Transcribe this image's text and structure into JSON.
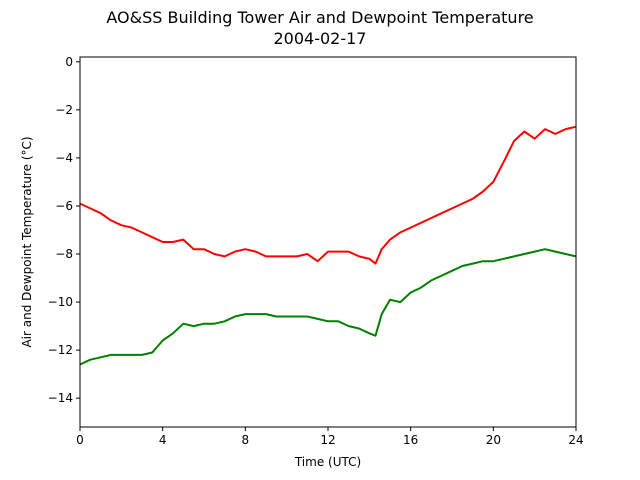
{
  "chart_data": {
    "type": "line",
    "title": "AO&SS Building Tower Air and Dewpoint Temperature",
    "subtitle": "2004-02-17",
    "xlabel": "Time (UTC)",
    "ylabel": "Air and Dewpoint Temperature (°C)",
    "xlim": [
      0,
      24
    ],
    "ylim": [
      -15.2,
      0.2
    ],
    "xticks": [
      0,
      4,
      8,
      12,
      16,
      20,
      24
    ],
    "yticks": [
      0,
      -2,
      -4,
      -6,
      -8,
      -10,
      -12,
      -14
    ],
    "xtick_labels": [
      "0",
      "4",
      "8",
      "12",
      "16",
      "20",
      "24"
    ],
    "ytick_labels": [
      "0",
      "−2",
      "−4",
      "−6",
      "−8",
      "−10",
      "−12",
      "−14"
    ],
    "grid": false,
    "series": [
      {
        "color": "#ff0000",
        "x": [
          0.0,
          0.5,
          1.0,
          1.5,
          2.0,
          2.5,
          3.0,
          3.5,
          4.0,
          4.5,
          5.0,
          5.5,
          6.0,
          6.5,
          7.0,
          7.5,
          8.0,
          8.5,
          9.0,
          9.5,
          10.0,
          10.5,
          11.0,
          11.5,
          12.0,
          12.5,
          13.0,
          13.5,
          14.0,
          14.3,
          14.6,
          15.0,
          15.5,
          16.0,
          16.5,
          17.0,
          17.5,
          18.0,
          18.5,
          19.0,
          19.5,
          20.0,
          20.3,
          20.6,
          21.0,
          21.5,
          22.0,
          22.5,
          23.0,
          23.5,
          24.0
        ],
        "values": [
          -5.9,
          -6.1,
          -6.3,
          -6.6,
          -6.8,
          -6.9,
          -7.1,
          -7.3,
          -7.5,
          -7.5,
          -7.4,
          -7.8,
          -7.8,
          -8.0,
          -8.1,
          -7.9,
          -7.8,
          -7.9,
          -8.1,
          -8.1,
          -8.1,
          -8.1,
          -8.0,
          -8.3,
          -7.9,
          -7.9,
          -7.9,
          -8.1,
          -8.2,
          -8.4,
          -7.8,
          -7.4,
          -7.1,
          -6.9,
          -6.7,
          -6.5,
          -6.3,
          -6.1,
          -5.9,
          -5.7,
          -5.4,
          -5.0,
          -4.5,
          -4.0,
          -3.3,
          -2.9,
          -3.2,
          -2.8,
          -3.0,
          -2.8,
          -2.7
        ]
      },
      {
        "color": "#008000",
        "x": [
          0.0,
          0.5,
          1.0,
          1.5,
          2.0,
          2.5,
          3.0,
          3.5,
          4.0,
          4.5,
          5.0,
          5.5,
          6.0,
          6.5,
          7.0,
          7.5,
          8.0,
          8.5,
          9.0,
          9.5,
          10.0,
          10.5,
          11.0,
          11.5,
          12.0,
          12.5,
          13.0,
          13.5,
          14.0,
          14.3,
          14.6,
          15.0,
          15.5,
          16.0,
          16.5,
          17.0,
          17.5,
          18.0,
          18.5,
          19.0,
          19.5,
          20.0,
          20.5,
          21.0,
          21.5,
          22.0,
          22.5,
          23.0,
          23.5,
          24.0
        ],
        "values": [
          -12.6,
          -12.4,
          -12.3,
          -12.2,
          -12.2,
          -12.2,
          -12.2,
          -12.1,
          -11.6,
          -11.3,
          -10.9,
          -11.0,
          -10.9,
          -10.9,
          -10.8,
          -10.6,
          -10.5,
          -10.5,
          -10.5,
          -10.6,
          -10.6,
          -10.6,
          -10.6,
          -10.7,
          -10.8,
          -10.8,
          -11.0,
          -11.1,
          -11.3,
          -11.4,
          -10.5,
          -9.9,
          -10.0,
          -9.6,
          -9.4,
          -9.1,
          -8.9,
          -8.7,
          -8.5,
          -8.4,
          -8.3,
          -8.3,
          -8.2,
          -8.1,
          -8.0,
          -7.9,
          -7.8,
          -7.9,
          -8.0,
          -8.1
        ]
      }
    ]
  }
}
